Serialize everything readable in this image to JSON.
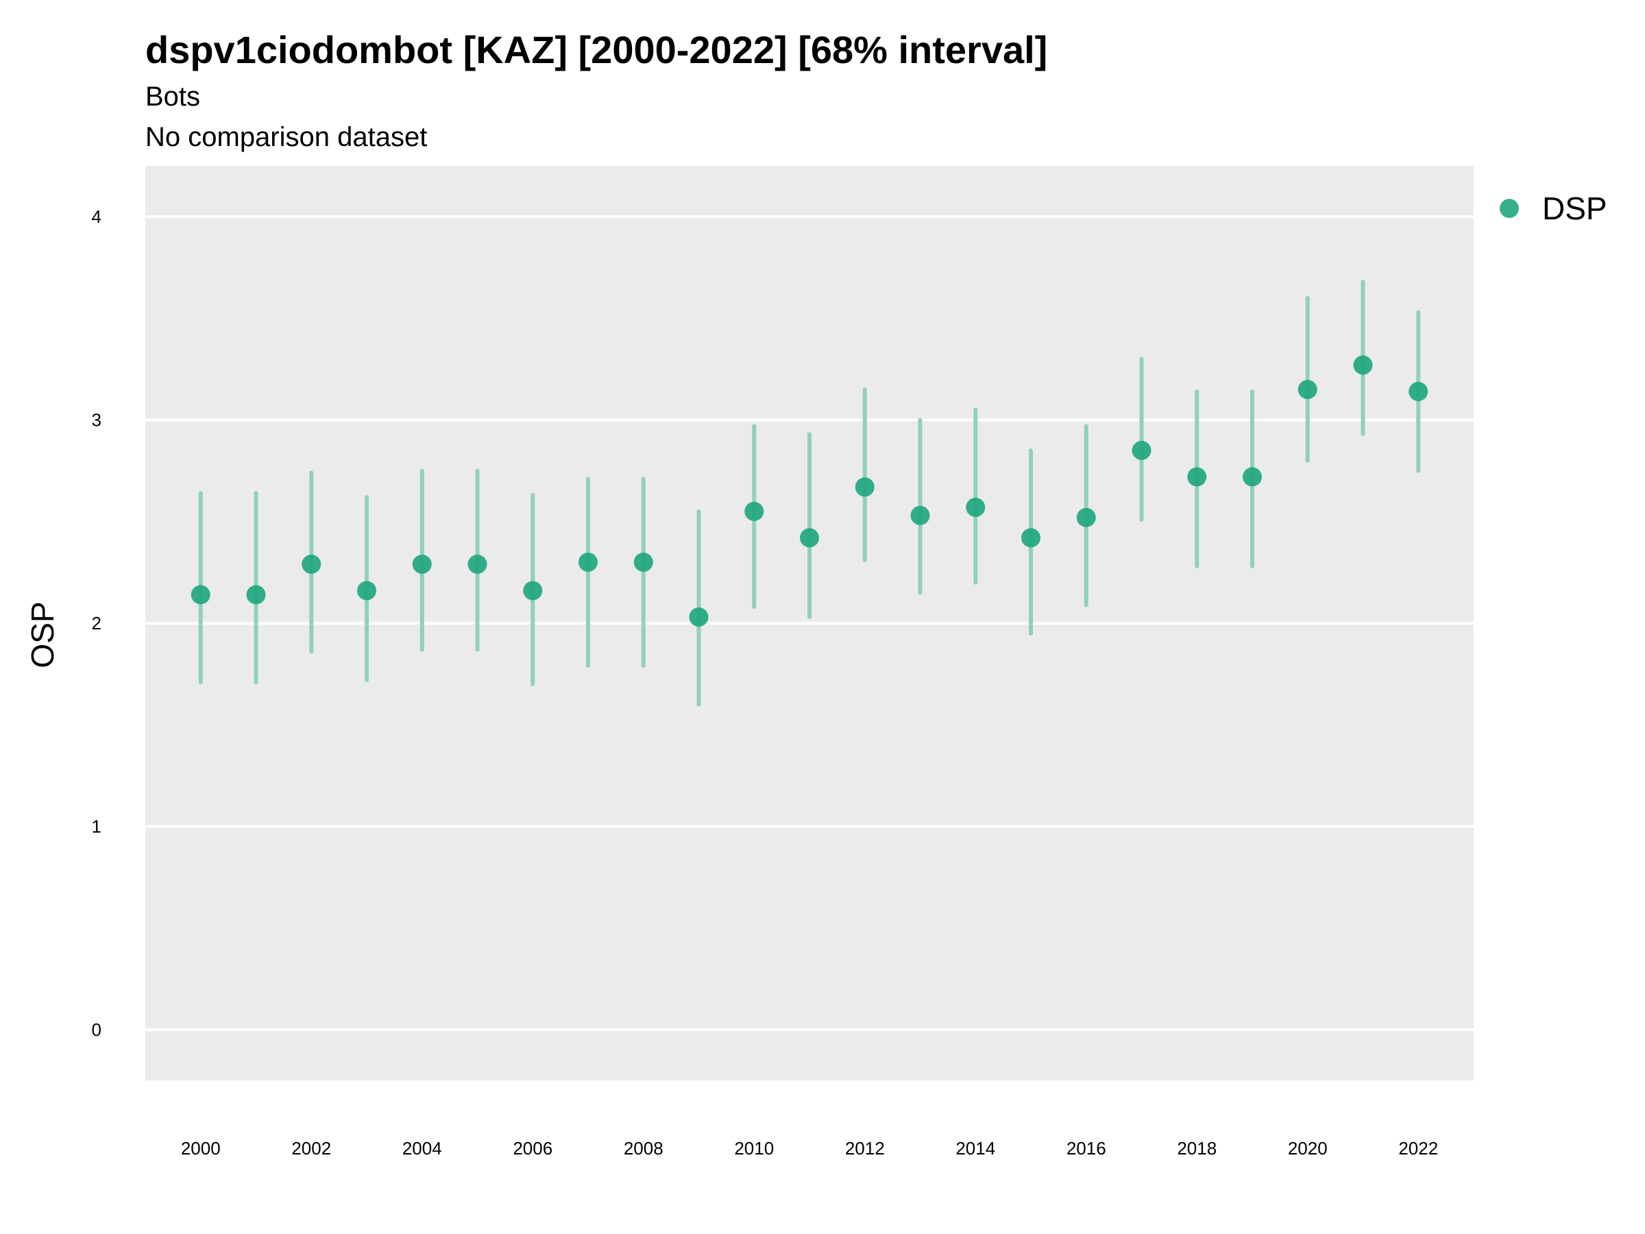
{
  "chart_data": {
    "type": "scatter",
    "title": "dspv1ciodombot [KAZ] [2000-2022] [68% interval]",
    "subtitle": "Bots",
    "caption_line": "No comparison dataset",
    "xlabel": "",
    "ylabel": "OSP",
    "xlim": [
      1999,
      2023
    ],
    "ylim": [
      -0.25,
      4.25
    ],
    "x_ticks": [
      2000,
      2002,
      2004,
      2006,
      2008,
      2010,
      2012,
      2014,
      2016,
      2018,
      2020,
      2022
    ],
    "y_ticks": [
      0,
      1,
      2,
      3,
      4
    ],
    "grid": true,
    "legend_position": "right",
    "series": [
      {
        "name": "DSP",
        "color": "#1fa67f",
        "interval_color": "#8fd1bc",
        "points": [
          {
            "x": 2000,
            "y": 2.14,
            "lo": 1.71,
            "hi": 2.64
          },
          {
            "x": 2001,
            "y": 2.14,
            "lo": 1.71,
            "hi": 2.64
          },
          {
            "x": 2002,
            "y": 2.29,
            "lo": 1.86,
            "hi": 2.74
          },
          {
            "x": 2003,
            "y": 2.16,
            "lo": 1.72,
            "hi": 2.62
          },
          {
            "x": 2004,
            "y": 2.29,
            "lo": 1.87,
            "hi": 2.75
          },
          {
            "x": 2005,
            "y": 2.29,
            "lo": 1.87,
            "hi": 2.75
          },
          {
            "x": 2006,
            "y": 2.16,
            "lo": 1.7,
            "hi": 2.63
          },
          {
            "x": 2007,
            "y": 2.3,
            "lo": 1.79,
            "hi": 2.71
          },
          {
            "x": 2008,
            "y": 2.3,
            "lo": 1.79,
            "hi": 2.71
          },
          {
            "x": 2009,
            "y": 2.03,
            "lo": 1.6,
            "hi": 2.55
          },
          {
            "x": 2010,
            "y": 2.55,
            "lo": 2.08,
            "hi": 2.97
          },
          {
            "x": 2011,
            "y": 2.42,
            "lo": 2.03,
            "hi": 2.93
          },
          {
            "x": 2012,
            "y": 2.67,
            "lo": 2.31,
            "hi": 3.15
          },
          {
            "x": 2013,
            "y": 2.53,
            "lo": 2.15,
            "hi": 3.0
          },
          {
            "x": 2014,
            "y": 2.57,
            "lo": 2.2,
            "hi": 3.05
          },
          {
            "x": 2015,
            "y": 2.42,
            "lo": 1.95,
            "hi": 2.85
          },
          {
            "x": 2016,
            "y": 2.52,
            "lo": 2.09,
            "hi": 2.97
          },
          {
            "x": 2017,
            "y": 2.85,
            "lo": 2.51,
            "hi": 3.3
          },
          {
            "x": 2018,
            "y": 2.72,
            "lo": 2.28,
            "hi": 3.14
          },
          {
            "x": 2019,
            "y": 2.72,
            "lo": 2.28,
            "hi": 3.14
          },
          {
            "x": 2020,
            "y": 3.15,
            "lo": 2.8,
            "hi": 3.6
          },
          {
            "x": 2021,
            "y": 3.27,
            "lo": 2.93,
            "hi": 3.68
          },
          {
            "x": 2022,
            "y": 3.14,
            "lo": 2.75,
            "hi": 3.53
          }
        ]
      }
    ],
    "panel_background": "#ebebeb",
    "grid_color": "#ffffff"
  }
}
